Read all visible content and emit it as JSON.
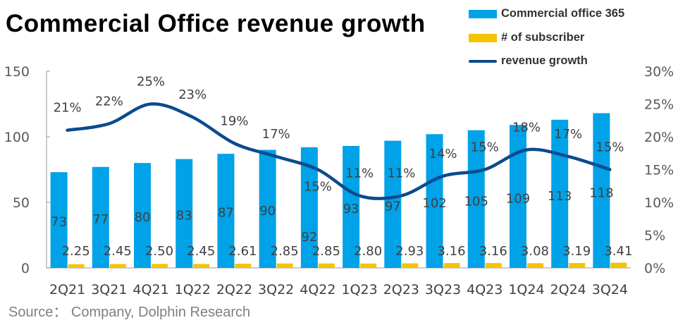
{
  "title": "Commercial Office revenue growth",
  "source": "Source： Company, Dolphin Research",
  "chart_data": {
    "type": "bar",
    "title": "Commercial Office revenue growth",
    "categories": [
      "2Q21",
      "3Q21",
      "4Q21",
      "1Q22",
      "2Q22",
      "3Q22",
      "4Q22",
      "1Q23",
      "2Q23",
      "3Q23",
      "4Q23",
      "1Q24",
      "2Q24",
      "3Q24"
    ],
    "series": [
      {
        "name": "Commercial office 365",
        "type": "bar",
        "axis": "left",
        "color": "#00A2E8",
        "values": [
          73,
          77,
          80,
          83,
          87,
          90,
          92,
          93,
          97,
          102,
          105,
          109,
          113,
          118
        ]
      },
      {
        "name": "# of subscriber",
        "type": "bar",
        "axis": "left",
        "color": "#F5C400",
        "values": [
          2.25,
          2.45,
          2.5,
          2.45,
          2.61,
          2.85,
          2.85,
          2.8,
          2.93,
          3.16,
          3.16,
          3.08,
          3.19,
          3.41
        ],
        "labels": [
          "2.25",
          "2.45",
          "2.50",
          "2.45",
          "2.61",
          "2.85",
          "2.85",
          "2.80",
          "2.93",
          "3.16",
          "3.16",
          "3.08",
          "3.19",
          "3.41"
        ]
      },
      {
        "name": "revenue growth",
        "type": "line",
        "axis": "right",
        "color": "#0B4A8F",
        "values": [
          21,
          22,
          25,
          23,
          19,
          17,
          15,
          11,
          11,
          14,
          15,
          18,
          17,
          15
        ]
      }
    ],
    "left_axis": {
      "range": [
        0,
        150
      ],
      "ticks": [
        "0",
        "50",
        "100",
        "150"
      ]
    },
    "right_axis": {
      "range": [
        0,
        30
      ],
      "ticks": [
        "0%",
        "5%",
        "10%",
        "15%",
        "20%",
        "25%",
        "30%"
      ]
    },
    "legend": "top-right",
    "grid": false
  }
}
